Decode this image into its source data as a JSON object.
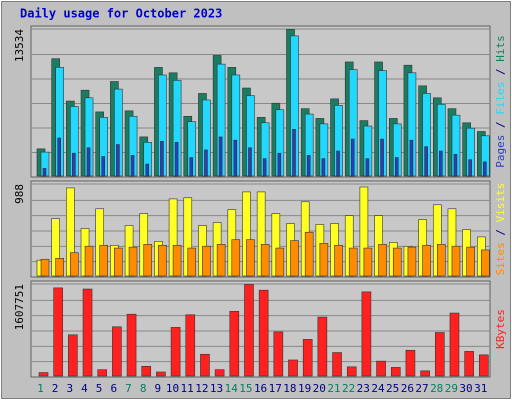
{
  "chart_data": {
    "type": "bar",
    "title": "Daily usage for October 2023",
    "categories": [
      "1",
      "2",
      "3",
      "4",
      "5",
      "6",
      "7",
      "8",
      "9",
      "10",
      "11",
      "12",
      "13",
      "14",
      "15",
      "16",
      "17",
      "18",
      "19",
      "20",
      "21",
      "22",
      "23",
      "24",
      "25",
      "26",
      "27",
      "28",
      "29",
      "30",
      "31"
    ],
    "category_colors": [
      "#008060",
      "#000080",
      "#000080",
      "#000080",
      "#000080",
      "#000080",
      "#008060",
      "#008060",
      "#000080",
      "#000080",
      "#000080",
      "#000080",
      "#000080",
      "#008060",
      "#008060",
      "#000080",
      "#000080",
      "#000080",
      "#000080",
      "#000080",
      "#008060",
      "#008060",
      "#000080",
      "#000080",
      "#000080",
      "#000080",
      "#000080",
      "#008060",
      "#008060",
      "#000080",
      "#000080"
    ],
    "legend_separator": " / ",
    "panels": [
      {
        "ylim": [
          0,
          13534
        ],
        "yticks": [
          13534
        ],
        "series": [
          {
            "name": "Pages",
            "color": "#2a3fbf",
            "values": [
              700,
              3500,
              2100,
              2600,
              1800,
              2900,
              1900,
              1100,
              3200,
              3100,
              1700,
              2400,
              3600,
              3300,
              2600,
              1600,
              2100,
              4300,
              1900,
              1600,
              2300,
              3400,
              1600,
              3400,
              1700,
              3300,
              2700,
              2300,
              2000,
              1500,
              1300
            ]
          },
          {
            "name": "Files",
            "color": "#22d8ff",
            "values": [
              2200,
              10000,
              6400,
              7200,
              5400,
              8000,
              5500,
              3100,
              9300,
              8800,
              5000,
              7000,
              10300,
              9300,
              7400,
              4900,
              6100,
              12900,
              5700,
              4800,
              6500,
              9800,
              4600,
              9700,
              4800,
              9500,
              7600,
              6600,
              5600,
              4400,
              3700
            ]
          },
          {
            "name": "Hits",
            "color": "#1a7d62",
            "values": [
              2500,
              10800,
              6900,
              7900,
              5900,
              8700,
              6000,
              3600,
              10000,
              9500,
              5500,
              7600,
              11100,
              10000,
              8100,
              5400,
              6700,
              13500,
              6200,
              5300,
              7100,
              10500,
              5100,
              10500,
              5300,
              10200,
              8300,
              7200,
              6200,
              4900,
              4100
            ]
          }
        ]
      },
      {
        "ylim": [
          0,
          988
        ],
        "yticks": [
          988
        ],
        "series": [
          {
            "name": "Sites",
            "color": "#ff8c00",
            "values": [
              180,
              190,
              250,
              320,
              330,
              300,
              310,
              340,
              330,
              330,
              300,
              320,
              340,
              390,
              390,
              340,
              300,
              380,
              470,
              350,
              330,
              300,
              300,
              340,
              300,
              310,
              330,
              340,
              320,
              310,
              280
            ]
          },
          {
            "name": "Visits",
            "color": "#ffff22",
            "values": [
              170,
              616,
              946,
              510,
              722,
              330,
              542,
              670,
              372,
              828,
              840,
              542,
              574,
              712,
              903,
              903,
              670,
              563,
              797,
              553,
              563,
              648,
              956,
              648,
              361,
              319,
              606,
              765,
              722,
              499,
              420
            ]
          }
        ]
      },
      {
        "ylim": [
          0,
          1607751
        ],
        "yticks": [
          1607751
        ],
        "series": [
          {
            "name": "KBytes",
            "color": "#ff2020",
            "values": [
              60000,
              1540000,
              720000,
              1520000,
              110000,
              860000,
              1080000,
              170000,
              70000,
              850000,
              1070000,
              380000,
              110000,
              1130000,
              1600000,
              1500000,
              770000,
              280000,
              640000,
              1030000,
              410000,
              160000,
              1470000,
              260000,
              150000,
              450000,
              90000,
              760000,
              1100000,
              430000,
              370000
            ]
          }
        ]
      }
    ]
  }
}
